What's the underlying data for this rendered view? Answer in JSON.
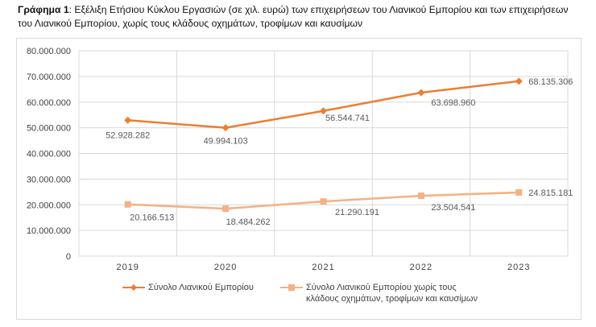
{
  "caption": {
    "prefix": "Γράφημα 1",
    "text": ": Εξέλιξη Ετήσιου Κύκλου Εργασιών (σε χιλ. ευρώ) των επιχειρήσεων του Λιανικού Εμπορίου και των επιχειρήσεων του Λιανικού Εμπορίου, χωρίς τους κλάδους οχημάτων, τροφίμων και καυσίμων"
  },
  "chart_data": {
    "type": "line",
    "categories": [
      "2019",
      "2020",
      "2021",
      "2022",
      "2023"
    ],
    "ylim": [
      0,
      80000000
    ],
    "yticks": [
      "0",
      "10.000.000",
      "20.000.000",
      "30.000.000",
      "40.000.000",
      "50.000.000",
      "60.000.000",
      "70.000.000",
      "80.000.000"
    ],
    "grid": true,
    "legend_position": "bottom",
    "series": [
      {
        "name": "Σύνολο Λιανικού Εμπορίου",
        "color": "#ED7D31",
        "marker": "diamond",
        "values": [
          52928282,
          49994103,
          56544741,
          63698960,
          68135306
        ],
        "labels": [
          "52.928.282",
          "49.994.103",
          "56.544.741",
          "63.698.960",
          "68.135.306"
        ]
      },
      {
        "name": "Σύνολο Λιανικού Εμπορίου χωρίς τους κλάδους οχημάτων, τροφίμων και καυσίμων",
        "name_line1": "Σύνολο Λιανικού Εμπορίου χωρίς τους",
        "name_line2": "κλάδους οχημάτων, τροφίμων και καυσίμων",
        "color": "#F4B183",
        "marker": "square",
        "values": [
          20166513,
          18484262,
          21290191,
          23504541,
          24815181
        ],
        "labels": [
          "20.166.513",
          "18.484.262",
          "21.290.191",
          "23.504.541",
          "24.815.181"
        ]
      }
    ]
  }
}
